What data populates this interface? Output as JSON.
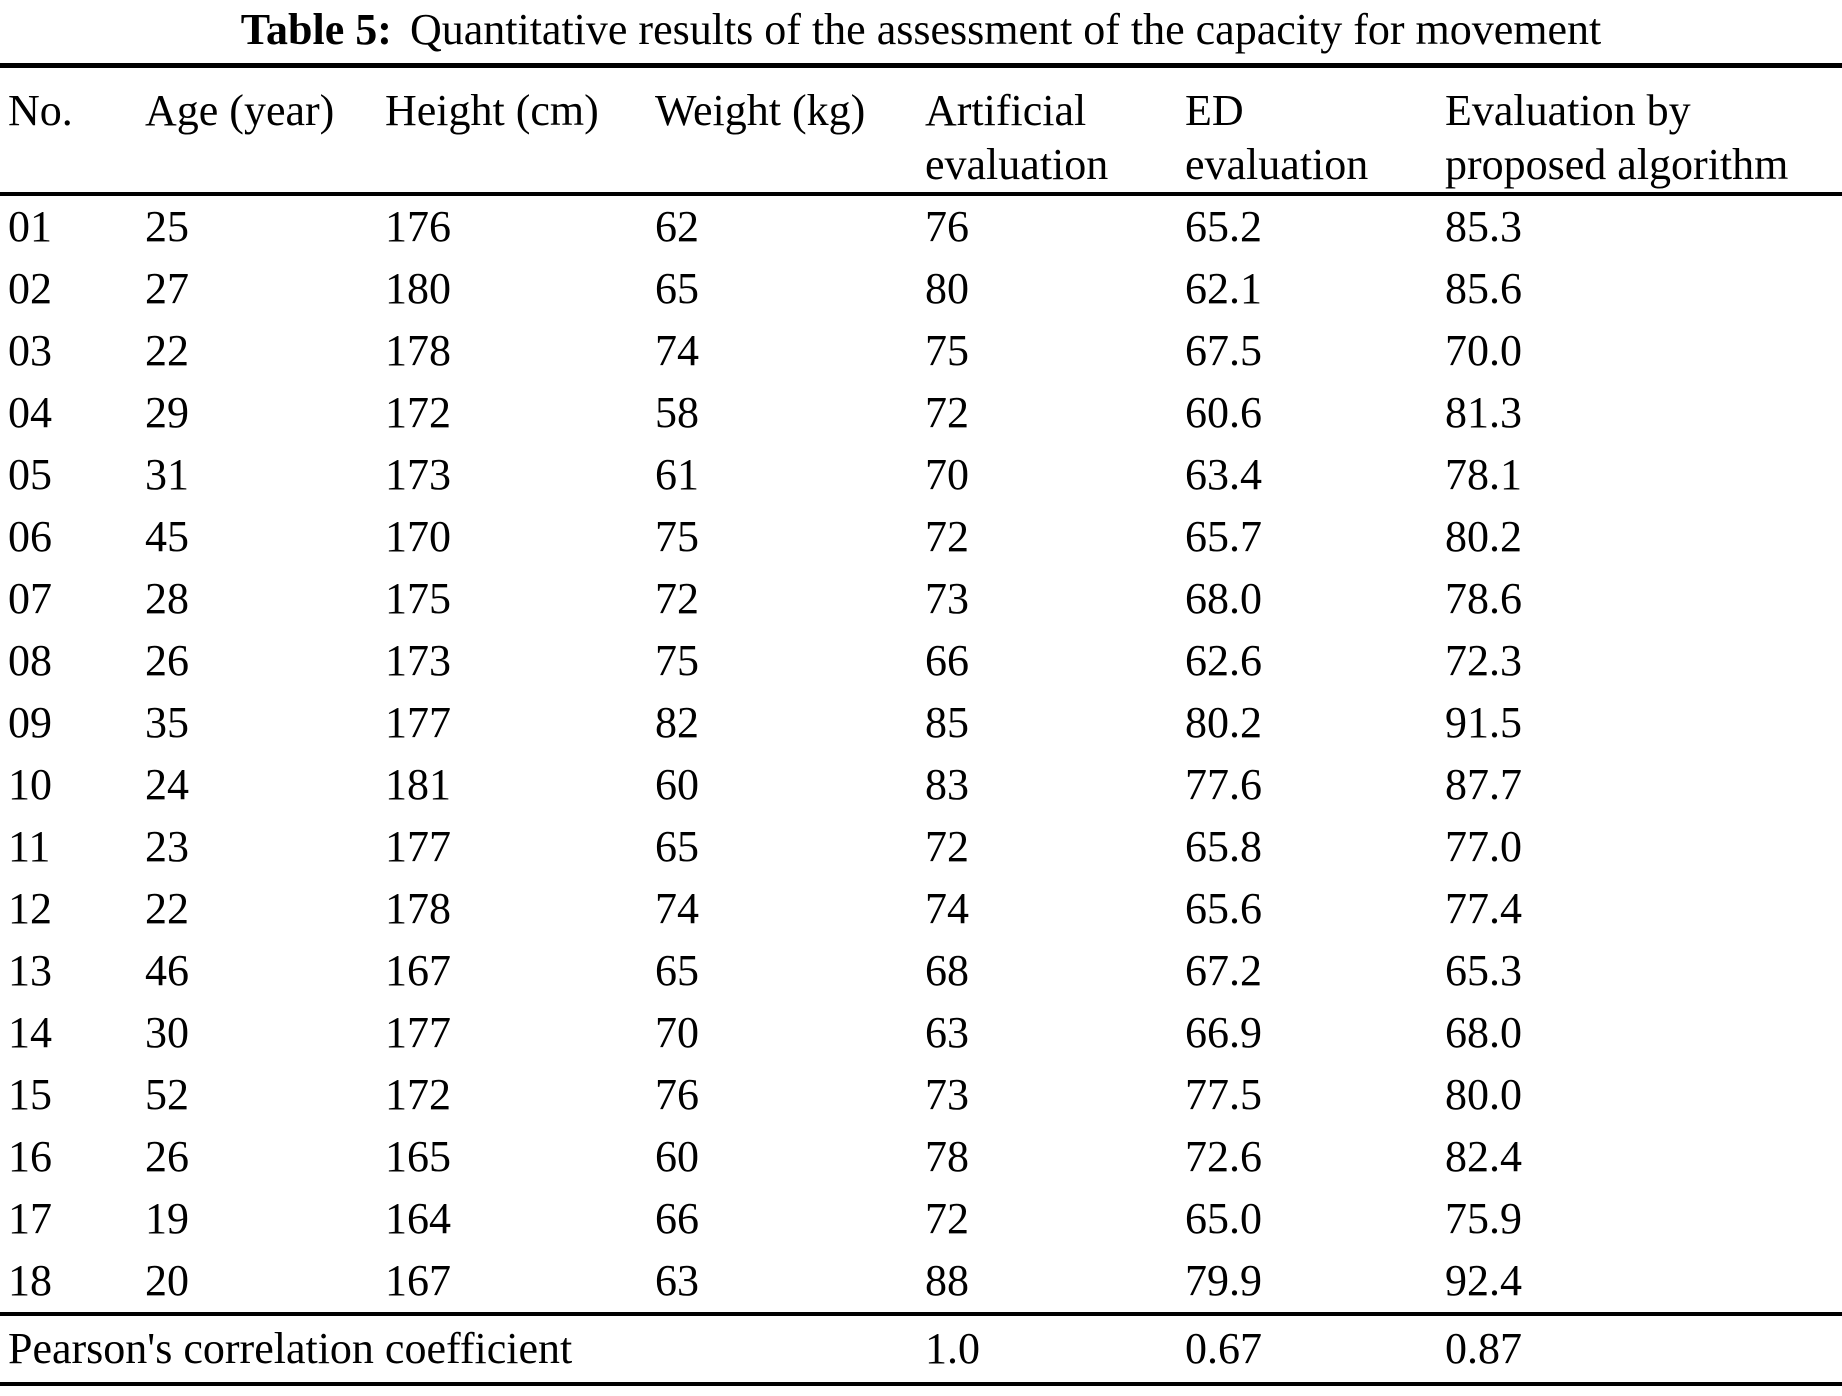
{
  "caption": {
    "label": "Table 5:",
    "text": "Quantitative results of the assessment of the capacity for movement"
  },
  "header": {
    "columns": [
      {
        "line1": "No.",
        "line2": ""
      },
      {
        "line1": "Age (year)",
        "line2": ""
      },
      {
        "line1": "Height (cm)",
        "line2": ""
      },
      {
        "line1": "Weight (kg)",
        "line2": ""
      },
      {
        "line1": "Artificial",
        "line2": "evaluation"
      },
      {
        "line1": "ED",
        "line2": "evaluation"
      },
      {
        "line1": "Evaluation by",
        "line2": "proposed algorithm"
      }
    ]
  },
  "table": {
    "rows": [
      [
        "01",
        "25",
        "176",
        "62",
        "76",
        "65.2",
        "85.3"
      ],
      [
        "02",
        "27",
        "180",
        "65",
        "80",
        "62.1",
        "85.6"
      ],
      [
        "03",
        "22",
        "178",
        "74",
        "75",
        "67.5",
        "70.0"
      ],
      [
        "04",
        "29",
        "172",
        "58",
        "72",
        "60.6",
        "81.3"
      ],
      [
        "05",
        "31",
        "173",
        "61",
        "70",
        "63.4",
        "78.1"
      ],
      [
        "06",
        "45",
        "170",
        "75",
        "72",
        "65.7",
        "80.2"
      ],
      [
        "07",
        "28",
        "175",
        "72",
        "73",
        "68.0",
        "78.6"
      ],
      [
        "08",
        "26",
        "173",
        "75",
        "66",
        "62.6",
        "72.3"
      ],
      [
        "09",
        "35",
        "177",
        "82",
        "85",
        "80.2",
        "91.5"
      ],
      [
        "10",
        "24",
        "181",
        "60",
        "83",
        "77.6",
        "87.7"
      ],
      [
        "11",
        "23",
        "177",
        "65",
        "72",
        "65.8",
        "77.0"
      ],
      [
        "12",
        "22",
        "178",
        "74",
        "74",
        "65.6",
        "77.4"
      ],
      [
        "13",
        "46",
        "167",
        "65",
        "68",
        "67.2",
        "65.3"
      ],
      [
        "14",
        "30",
        "177",
        "70",
        "63",
        "66.9",
        "68.0"
      ],
      [
        "15",
        "52",
        "172",
        "76",
        "73",
        "77.5",
        "80.0"
      ],
      [
        "16",
        "26",
        "165",
        "60",
        "78",
        "72.6",
        "82.4"
      ],
      [
        "17",
        "19",
        "164",
        "66",
        "72",
        "65.0",
        "75.9"
      ],
      [
        "18",
        "20",
        "167",
        "63",
        "88",
        "79.9",
        "92.4"
      ]
    ]
  },
  "footer": {
    "label": "Pearson's correlation coefficient",
    "values": [
      "1.0",
      "0.67",
      "0.87"
    ]
  },
  "colors": {
    "text": "#000000",
    "background": "#ffffff",
    "rule": "#000000"
  }
}
